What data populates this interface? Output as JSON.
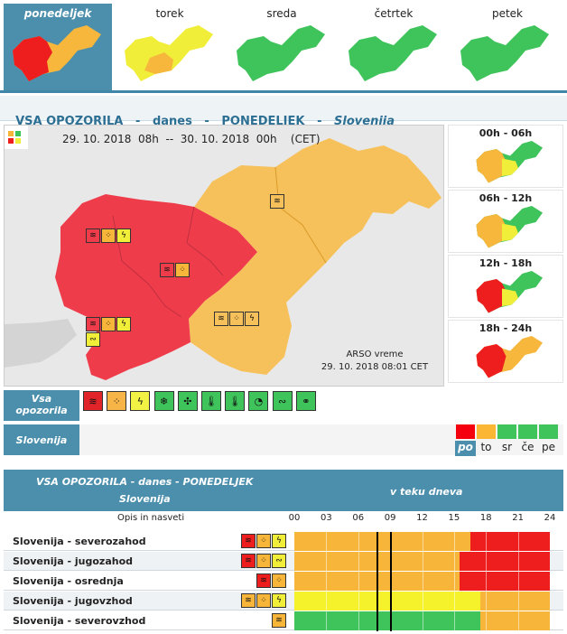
{
  "days": [
    {
      "label": "ponedeljek",
      "active": true
    },
    {
      "label": "torek",
      "active": false
    },
    {
      "label": "sreda",
      "active": false
    },
    {
      "label": "četrtek",
      "active": false
    },
    {
      "label": "petek",
      "active": false
    }
  ],
  "header": {
    "part1": "VSA OPOZORILA",
    "sep": "-",
    "part2": "danes",
    "part3": "PONEDELJEK",
    "region": "Slovenija"
  },
  "map": {
    "date_from": "29. 10. 2018  08h",
    "date_sep": "--",
    "date_to": "30. 10. 2018  00h",
    "tz": "(CET)",
    "credit_line1": "ARSO vreme",
    "credit_line2": "29. 10. 2018  08:01 CET"
  },
  "timeslots": [
    "00h - 06h",
    "06h - 12h",
    "12h - 18h",
    "18h - 24h"
  ],
  "legend": {
    "title_line1": "Vsa",
    "title_line2": "opozorila",
    "icons": [
      {
        "name": "wind-icon",
        "glyph": "≋",
        "color": "#e0242a"
      },
      {
        "name": "rain-icon",
        "glyph": "⁘",
        "color": "#f7b548"
      },
      {
        "name": "thunderstorm-icon",
        "glyph": "ϟ",
        "color": "#f2f244"
      },
      {
        "name": "snow-icon",
        "glyph": "❄",
        "color": "#3fc35b"
      },
      {
        "name": "ice-icon",
        "glyph": "✣",
        "color": "#3fc35b"
      },
      {
        "name": "high-temperature-icon",
        "glyph": "🌡",
        "color": "#3fc35b"
      },
      {
        "name": "low-temperature-icon",
        "glyph": "🌡",
        "color": "#3fc35b"
      },
      {
        "name": "fire-icon",
        "glyph": "◔",
        "color": "#3fc35b"
      },
      {
        "name": "coastal-icon",
        "glyph": "∾",
        "color": "#3fc35b"
      },
      {
        "name": "flood-icon",
        "glyph": "⚭",
        "color": "#3fc35b"
      }
    ],
    "region": "Slovenija",
    "levels": [
      {
        "label": "po",
        "color": "#f5000e",
        "active": true
      },
      {
        "label": "to",
        "color": "#fbb734"
      },
      {
        "label": "sr",
        "color": "#3fc35b"
      },
      {
        "label": "če",
        "color": "#3fc35b"
      },
      {
        "label": "pe",
        "color": "#3fc35b"
      }
    ]
  },
  "table": {
    "title_line1": "VSA OPOZORILA - danes - PONEDELJEK",
    "title_line2": "Slovenija",
    "during_day": "v teku dneva",
    "col_desc": "Opis in nasveti",
    "hours": [
      "00",
      "03",
      "06",
      "09",
      "12",
      "15",
      "18",
      "21",
      "24"
    ],
    "rows": [
      {
        "name": "Slovenija - severozahod",
        "bands": [
          [
            "#f7b63a",
            0,
            16.5
          ],
          [
            "#ee1e1e",
            16.5,
            24
          ]
        ]
      },
      {
        "name": "Slovenija - jugozahod",
        "bands": [
          [
            "#f7b63a",
            0,
            15.5
          ],
          [
            "#ee1e1e",
            15.5,
            24
          ]
        ]
      },
      {
        "name": "Slovenija - osrednja",
        "bands": [
          [
            "#f7b63a",
            0,
            15.5
          ],
          [
            "#ee1e1e",
            15.5,
            24
          ]
        ]
      },
      {
        "name": "Slovenija - jugovzhod",
        "bands": [
          [
            "#f5f22c",
            0,
            17.5
          ],
          [
            "#f7b63a",
            17.5,
            24
          ]
        ]
      },
      {
        "name": "Slovenija - severovzhod",
        "bands": [
          [
            "#3fc35b",
            0,
            17.5
          ],
          [
            "#f7b63a",
            17.5,
            24
          ]
        ]
      }
    ]
  }
}
